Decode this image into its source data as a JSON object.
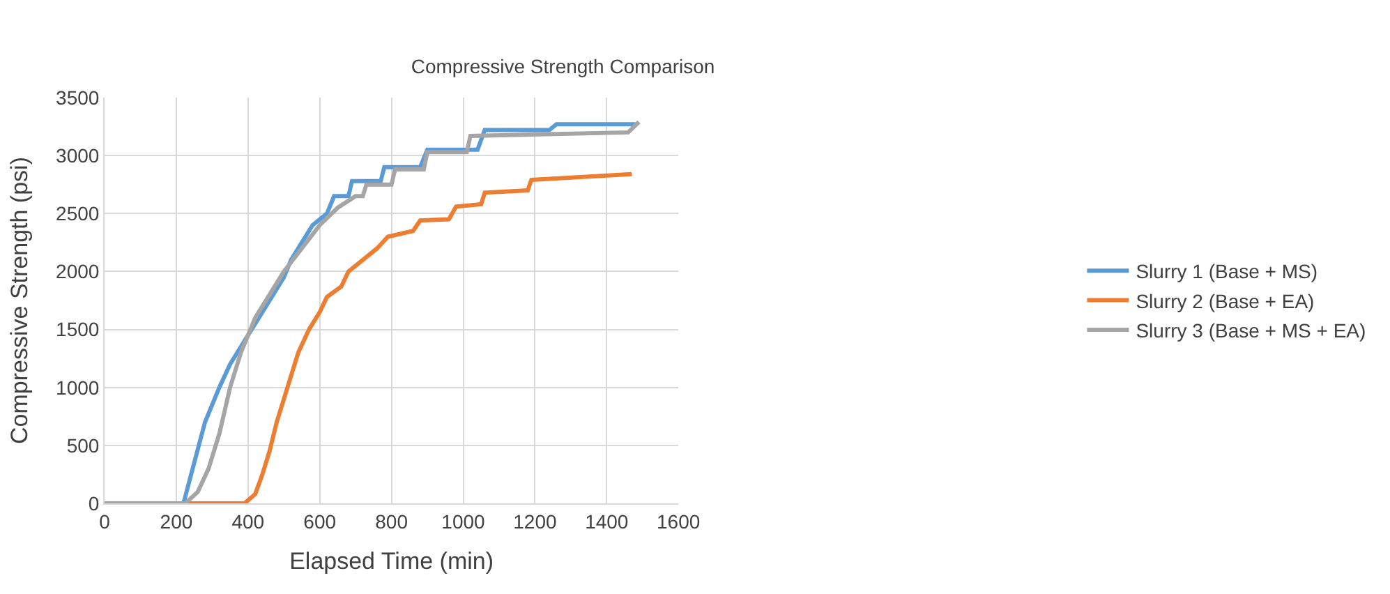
{
  "chart_data": {
    "type": "line",
    "title": "Compressive Strength Comparison",
    "xlabel": "Elapsed Time (min)",
    "ylabel": "Compressive Strength (psi)",
    "xlim": [
      0,
      1600
    ],
    "xticks": [
      0,
      200,
      400,
      600,
      800,
      1000,
      1200,
      1400,
      1600
    ],
    "ylim": [
      0,
      3500
    ],
    "yticks": [
      0,
      500,
      1000,
      1500,
      2000,
      2500,
      3000,
      3500
    ],
    "grid": true,
    "legend": "right",
    "marker": "none",
    "line_style": "solid",
    "series": [
      {
        "name": "Slurry 1 (Base + MS)",
        "color": "#5b9bd5",
        "x": [
          0,
          220,
          250,
          280,
          320,
          350,
          400,
          450,
          500,
          520,
          550,
          580,
          620,
          640,
          680,
          690,
          770,
          780,
          880,
          900,
          1040,
          1060,
          1240,
          1260,
          1480
        ],
        "values": [
          0,
          0,
          350,
          700,
          1000,
          1200,
          1450,
          1700,
          1950,
          2100,
          2250,
          2400,
          2500,
          2650,
          2650,
          2780,
          2780,
          2900,
          2900,
          3050,
          3050,
          3220,
          3220,
          3270,
          3270
        ]
      },
      {
        "name": "Slurry 2 (Base + EA)",
        "color": "#ed7d31",
        "x": [
          0,
          390,
          420,
          440,
          460,
          480,
          510,
          540,
          570,
          600,
          620,
          660,
          680,
          720,
          760,
          790,
          860,
          880,
          960,
          980,
          1050,
          1060,
          1180,
          1190,
          1470
        ],
        "values": [
          0,
          0,
          80,
          250,
          450,
          700,
          1000,
          1300,
          1500,
          1650,
          1780,
          1870,
          2000,
          2100,
          2200,
          2300,
          2350,
          2440,
          2450,
          2560,
          2580,
          2680,
          2700,
          2790,
          2840
        ]
      },
      {
        "name": "Slurry 3 (Base + MS + EA)",
        "color": "#a5a5a5",
        "x": [
          0,
          225,
          260,
          290,
          320,
          350,
          380,
          420,
          460,
          500,
          550,
          600,
          650,
          700,
          720,
          730,
          800,
          810,
          890,
          900,
          1010,
          1020,
          1460,
          1490
        ],
        "values": [
          0,
          0,
          100,
          300,
          600,
          1000,
          1300,
          1600,
          1800,
          2000,
          2200,
          2400,
          2550,
          2650,
          2650,
          2750,
          2750,
          2880,
          2880,
          3030,
          3030,
          3170,
          3200,
          3290
        ]
      }
    ]
  }
}
